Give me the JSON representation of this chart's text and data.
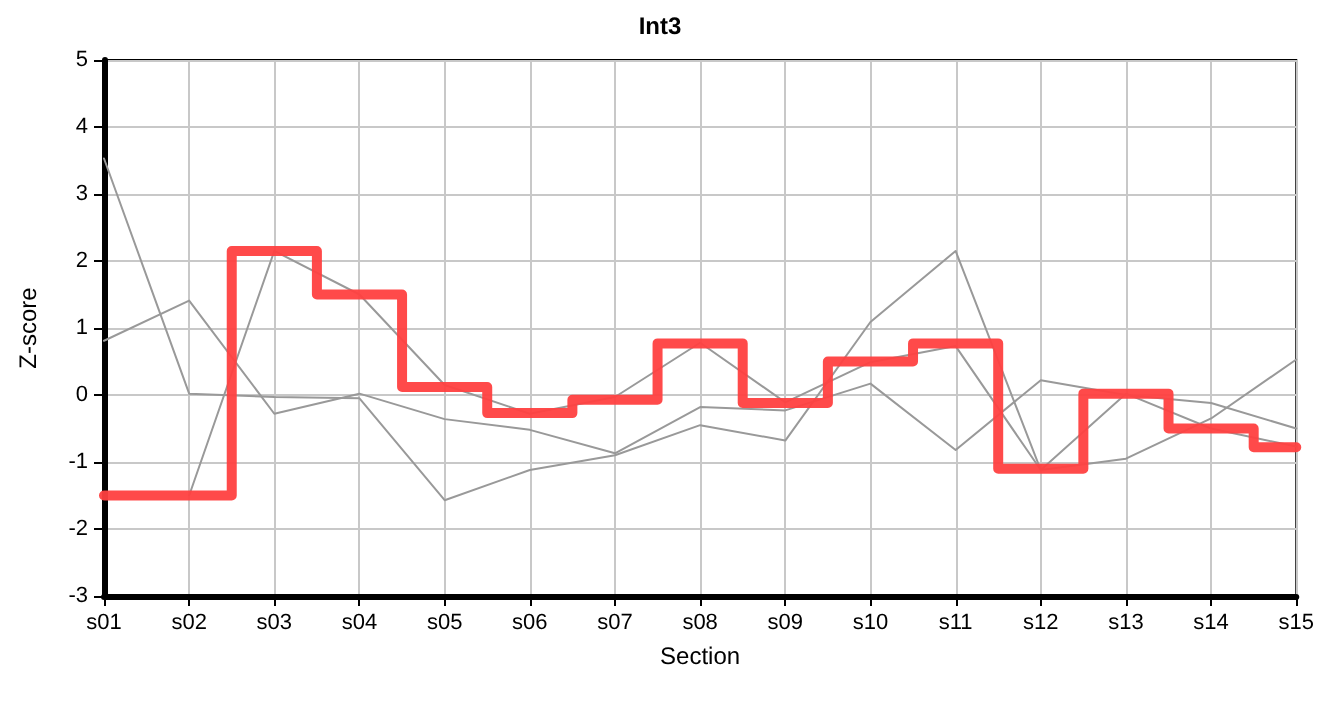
{
  "chart_data": {
    "type": "line",
    "title": "Int3",
    "xlabel": "Section",
    "ylabel": "Z-score",
    "categories": [
      "s01",
      "s02",
      "s03",
      "s04",
      "s05",
      "s06",
      "s07",
      "s08",
      "s09",
      "s10",
      "s11",
      "s12",
      "s13",
      "s14",
      "s15"
    ],
    "series": [
      {
        "color": "#999999",
        "values": [
          3.53,
          0.02,
          -0.03,
          -0.05,
          -1.57,
          -1.12,
          -0.9,
          -0.45,
          -0.68,
          1.09,
          2.15,
          -1.12,
          -0.95,
          -0.35,
          0.53
        ]
      },
      {
        "color": "#999999",
        "values": [
          0.81,
          1.41,
          -0.28,
          0.02,
          -0.36,
          -0.52,
          -0.87,
          -0.18,
          -0.23,
          0.17,
          -0.82,
          0.22,
          0,
          -0.12,
          -0.5
        ]
      },
      {
        "color": "#999999",
        "values": [
          null,
          -1.5,
          2.15,
          1.5,
          0.15,
          -0.28,
          -0.03,
          0.78,
          -0.11,
          0.49,
          0.73,
          -1.12,
          0.02,
          -0.5,
          -0.77
        ]
      },
      {
        "type": "step",
        "color": "#ff4040",
        "values": [
          -1.5,
          -1.5,
          2.15,
          1.5,
          0.12,
          -0.27,
          -0.07,
          0.77,
          -0.12,
          0.5,
          0.77,
          -1.1,
          0.02,
          -0.5,
          -0.78
        ]
      }
    ],
    "ylim": [
      -3,
      5
    ],
    "yticks": [
      -3,
      -2,
      -1,
      0,
      1,
      2,
      3,
      4,
      5
    ],
    "grid": true,
    "marker": "none",
    "line_style": "solid"
  }
}
